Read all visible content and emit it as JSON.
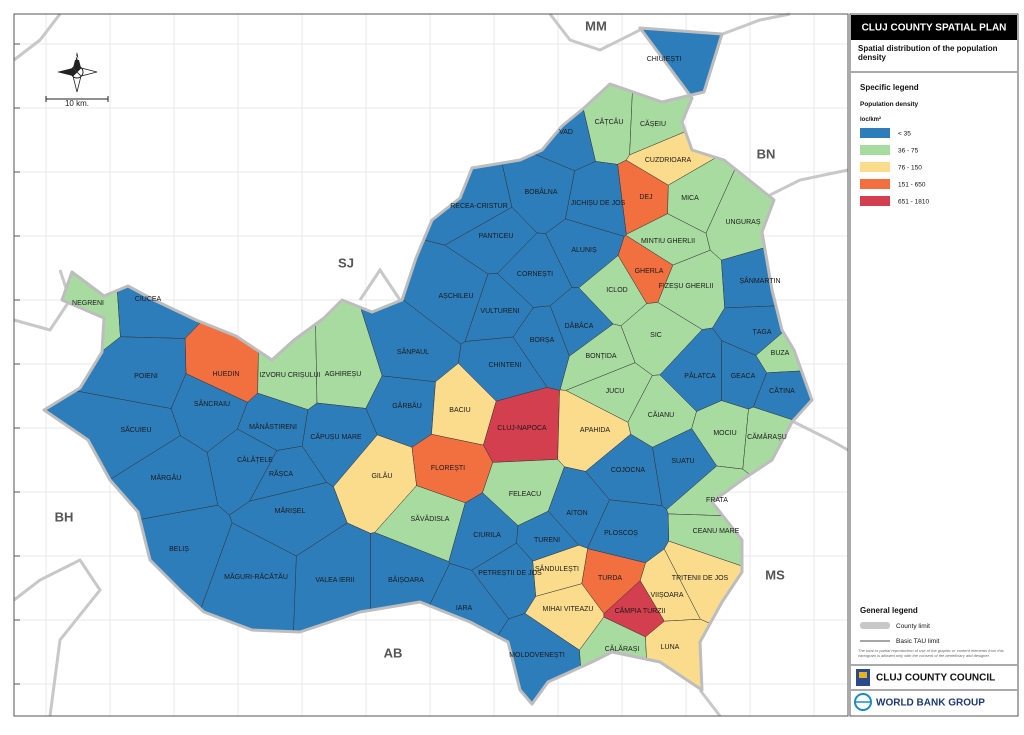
{
  "map": {
    "neighbors": [
      "MM",
      "BN",
      "SJ",
      "BH",
      "MS",
      "AB"
    ],
    "scale": "10 km.",
    "regions": [
      {
        "name": "CHIUIEȘTI",
        "color": "#2e7dbb"
      },
      {
        "name": "CĂȚCĂU",
        "color": "#a8dba0"
      },
      {
        "name": "CĂȘEIU",
        "color": "#a8dba0"
      },
      {
        "name": "VAD",
        "color": "#2e7dbb"
      },
      {
        "name": "CUZDRIOARA",
        "color": "#fbdc8c"
      },
      {
        "name": "DEJ",
        "color": "#f2703f"
      },
      {
        "name": "BOBÂLNA",
        "color": "#2e7dbb"
      },
      {
        "name": "RECEA-CRISTUR",
        "color": "#2e7dbb"
      },
      {
        "name": "JICHIȘU DE JOS",
        "color": "#2e7dbb"
      },
      {
        "name": "MICA",
        "color": "#a8dba0"
      },
      {
        "name": "UNGURAȘ",
        "color": "#a8dba0"
      },
      {
        "name": "ALUNIȘ",
        "color": "#2e7dbb"
      },
      {
        "name": "MINTIU GHERLII",
        "color": "#a8dba0"
      },
      {
        "name": "PANTICEU",
        "color": "#2e7dbb"
      },
      {
        "name": "CORNEȘTI",
        "color": "#2e7dbb"
      },
      {
        "name": "GHERLA",
        "color": "#f2703f"
      },
      {
        "name": "FIZEȘU GHERLII",
        "color": "#a8dba0"
      },
      {
        "name": "ICLOD",
        "color": "#a8dba0"
      },
      {
        "name": "ȘÂNMARTIN",
        "color": "#2e7dbb"
      },
      {
        "name": "NEGRENI",
        "color": "#a8dba0"
      },
      {
        "name": "CIUCEA",
        "color": "#2e7dbb"
      },
      {
        "name": "AȘCHILEU",
        "color": "#2e7dbb"
      },
      {
        "name": "VULTURENI",
        "color": "#2e7dbb"
      },
      {
        "name": "DĂBÂCA",
        "color": "#2e7dbb"
      },
      {
        "name": "SIC",
        "color": "#a8dba0"
      },
      {
        "name": "ȚAGA",
        "color": "#2e7dbb"
      },
      {
        "name": "BORȘA",
        "color": "#2e7dbb"
      },
      {
        "name": "SÂNPAUL",
        "color": "#2e7dbb"
      },
      {
        "name": "BONȚIDA",
        "color": "#a8dba0"
      },
      {
        "name": "BUZA",
        "color": "#a8dba0"
      },
      {
        "name": "HUEDIN",
        "color": "#f2703f"
      },
      {
        "name": "POIENI",
        "color": "#2e7dbb"
      },
      {
        "name": "IZVORU CRIȘULUI",
        "color": "#a8dba0"
      },
      {
        "name": "AGHIREȘU",
        "color": "#a8dba0"
      },
      {
        "name": "CHINTENI",
        "color": "#2e7dbb"
      },
      {
        "name": "JUCU",
        "color": "#a8dba0"
      },
      {
        "name": "PĂLATCA",
        "color": "#2e7dbb"
      },
      {
        "name": "GEACA",
        "color": "#2e7dbb"
      },
      {
        "name": "CĂTINA",
        "color": "#2e7dbb"
      },
      {
        "name": "SÂNCRAIU",
        "color": "#2e7dbb"
      },
      {
        "name": "GÂRBĂU",
        "color": "#2e7dbb"
      },
      {
        "name": "BACIU",
        "color": "#fbdc8c"
      },
      {
        "name": "CĂIANU",
        "color": "#a8dba0"
      },
      {
        "name": "MĂNĂSTIRENI",
        "color": "#2e7dbb"
      },
      {
        "name": "SĂCUIEU",
        "color": "#2e7dbb"
      },
      {
        "name": "CĂPUȘU MARE",
        "color": "#2e7dbb"
      },
      {
        "name": "CLUJ-NAPOCA",
        "color": "#d33f4e"
      },
      {
        "name": "APAHIDA",
        "color": "#fbdc8c"
      },
      {
        "name": "MOCIU",
        "color": "#a8dba0"
      },
      {
        "name": "CĂMĂRAȘU",
        "color": "#a8dba0"
      },
      {
        "name": "CĂLĂȚELE",
        "color": "#2e7dbb"
      },
      {
        "name": "COJOCNA",
        "color": "#2e7dbb"
      },
      {
        "name": "SUATU",
        "color": "#2e7dbb"
      },
      {
        "name": "RĂȘCA",
        "color": "#2e7dbb"
      },
      {
        "name": "GILĂU",
        "color": "#fbdc8c"
      },
      {
        "name": "FLOREȘTI",
        "color": "#f2703f"
      },
      {
        "name": "MĂRGĂU",
        "color": "#2e7dbb"
      },
      {
        "name": "FRATA",
        "color": "#a8dba0"
      },
      {
        "name": "FELEACU",
        "color": "#a8dba0"
      },
      {
        "name": "MĂRIȘEL",
        "color": "#2e7dbb"
      },
      {
        "name": "AITON",
        "color": "#2e7dbb"
      },
      {
        "name": "SĂVĂDISLA",
        "color": "#a8dba0"
      },
      {
        "name": "CEANU MARE",
        "color": "#a8dba0"
      },
      {
        "name": "CIURILA",
        "color": "#2e7dbb"
      },
      {
        "name": "PLOSCOȘ",
        "color": "#2e7dbb"
      },
      {
        "name": "TURENI",
        "color": "#2e7dbb"
      },
      {
        "name": "BELIȘ",
        "color": "#2e7dbb"
      },
      {
        "name": "SĂNDULEȘTI",
        "color": "#fbdc8c"
      },
      {
        "name": "PETREȘTII DE JOS",
        "color": "#2e7dbb"
      },
      {
        "name": "TURDA",
        "color": "#f2703f"
      },
      {
        "name": "TRITENII DE JOS",
        "color": "#fbdc8c"
      },
      {
        "name": "MĂGURI-RĂCĂTĂU",
        "color": "#2e7dbb"
      },
      {
        "name": "VALEA IERII",
        "color": "#2e7dbb"
      },
      {
        "name": "BĂIȘOARA",
        "color": "#2e7dbb"
      },
      {
        "name": "VIIȘOARA",
        "color": "#fbdc8c"
      },
      {
        "name": "MIHAI VITEAZU",
        "color": "#fbdc8c"
      },
      {
        "name": "CÂMPIA TURZII",
        "color": "#d33f4e"
      },
      {
        "name": "IARA",
        "color": "#2e7dbb"
      },
      {
        "name": "CĂLĂRAȘI",
        "color": "#a8dba0"
      },
      {
        "name": "LUNA",
        "color": "#fbdc8c"
      },
      {
        "name": "MOLDOVENEȘTI",
        "color": "#2e7dbb"
      }
    ]
  },
  "panel": {
    "title": "CLUJ COUNTY SPATIAL PLAN",
    "subtitle": "Spatial distribution of the population density",
    "specific_legend": "Specific legend",
    "legend_title": "Population density",
    "unit": "loc/km²",
    "classes": [
      {
        "label": "< 35",
        "color": "#2e7dbb"
      },
      {
        "label": "36 - 75",
        "color": "#a8dba0"
      },
      {
        "label": "76 - 150",
        "color": "#fbdc8c"
      },
      {
        "label": "151 - 650",
        "color": "#f2703f"
      },
      {
        "label": "651 - 1810",
        "color": "#d33f4e"
      }
    ],
    "general_legend": "General legend",
    "county_limit": "County limit",
    "tau_limit": "Basic TAU limit",
    "disclaimer": "The total or partial reproduction of use of the graphic or content elements from this cartogram is allowed only with the consent of the beneficiary and designer.",
    "council": "CLUJ COUNTY COUNCIL",
    "bank": "WORLD BANK GROUP"
  }
}
